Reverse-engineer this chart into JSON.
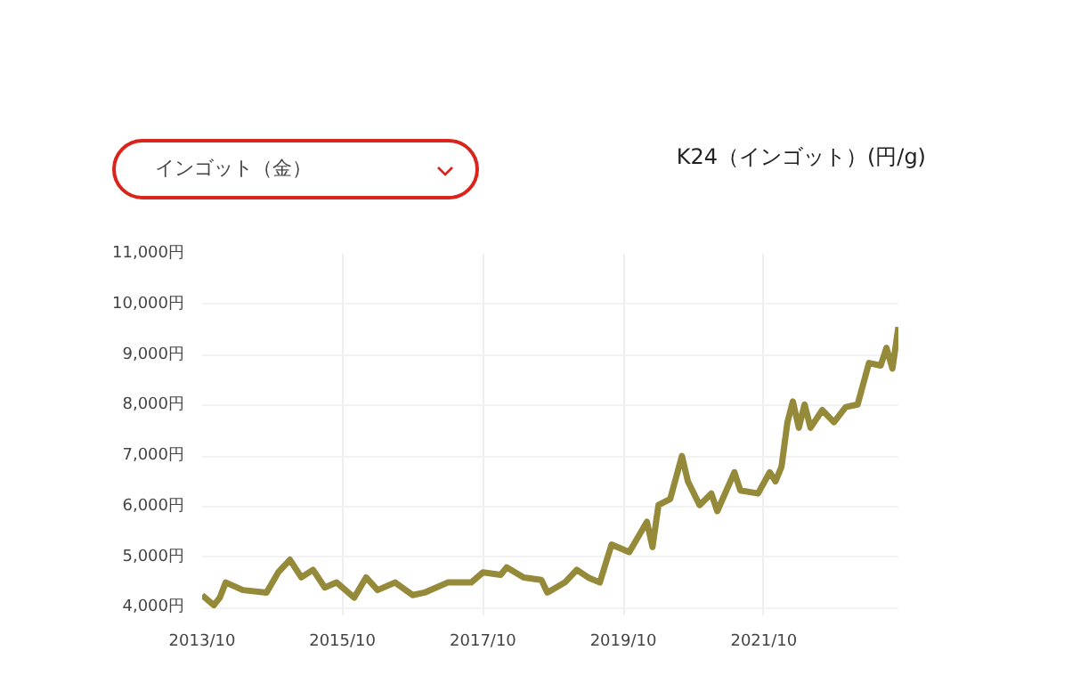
{
  "chart_data": {
    "type": "line",
    "title": "K24（インゴット）(円/g)",
    "annotations": [
      "インゴット（金）"
    ],
    "x": [
      "2013-10",
      "2013-12",
      "2014-01",
      "2014-02",
      "2014-05",
      "2014-09",
      "2014-11",
      "2015-01",
      "2015-03",
      "2015-05",
      "2015-07",
      "2015-09",
      "2015-12",
      "2016-02",
      "2016-04",
      "2016-07",
      "2016-10",
      "2016-12",
      "2017-04",
      "2017-08",
      "2017-10",
      "2018-01",
      "2018-02",
      "2018-05",
      "2018-08",
      "2018-09",
      "2018-12",
      "2019-02",
      "2019-04",
      "2019-06",
      "2019-08",
      "2019-11",
      "2020-02",
      "2020-03",
      "2020-04",
      "2020-06",
      "2020-08",
      "2020-09",
      "2020-11",
      "2021-01",
      "2021-02",
      "2021-05",
      "2021-06",
      "2021-09",
      "2021-11",
      "2021-12",
      "2022-01",
      "2022-02",
      "2022-03",
      "2022-04",
      "2022-05",
      "2022-06",
      "2022-08",
      "2022-10",
      "2022-12",
      "2023-02",
      "2023-04",
      "2023-06",
      "2023-07",
      "2023-08",
      "2023-09"
    ],
    "series": [
      {
        "color": "#948a3a",
        "values": [
          4250,
          4050,
          4200,
          4500,
          4350,
          4300,
          4700,
          4950,
          4600,
          4750,
          4400,
          4500,
          4200,
          4600,
          4350,
          4500,
          4250,
          4300,
          4500,
          4500,
          4700,
          4650,
          4800,
          4600,
          4550,
          4300,
          4500,
          4750,
          4600,
          4500,
          5250,
          5100,
          5700,
          5200,
          6030,
          6150,
          7000,
          6500,
          6030,
          6260,
          5910,
          6680,
          6320,
          6260,
          6680,
          6500,
          6790,
          7670,
          8080,
          7560,
          8020,
          7560,
          7910,
          7670,
          7970,
          8020,
          8840,
          8790,
          9140,
          8730,
          9550
        ]
      }
    ],
    "xlim": [
      "2013-10",
      "2023-09"
    ],
    "xticks": [
      {
        "value": "2013-10",
        "label": "2013/10"
      },
      {
        "value": "2015-10",
        "label": "2015/10"
      },
      {
        "value": "2017-10",
        "label": "2017/10"
      },
      {
        "value": "2019-10",
        "label": "2019/10"
      },
      {
        "value": "2021-10",
        "label": "2021/10"
      }
    ],
    "ylim": [
      3850,
      11000
    ],
    "yticks": [
      {
        "value": 4000,
        "label": "4,000円"
      },
      {
        "value": 5000,
        "label": "5,000円"
      },
      {
        "value": 6000,
        "label": "6,000円"
      },
      {
        "value": 7000,
        "label": "7,000円"
      },
      {
        "value": 8000,
        "label": "8,000円"
      },
      {
        "value": 9000,
        "label": "9,000円"
      },
      {
        "value": 10000,
        "label": "10,000円"
      },
      {
        "value": 11000,
        "label": "11,000円"
      }
    ],
    "grid": true
  }
}
